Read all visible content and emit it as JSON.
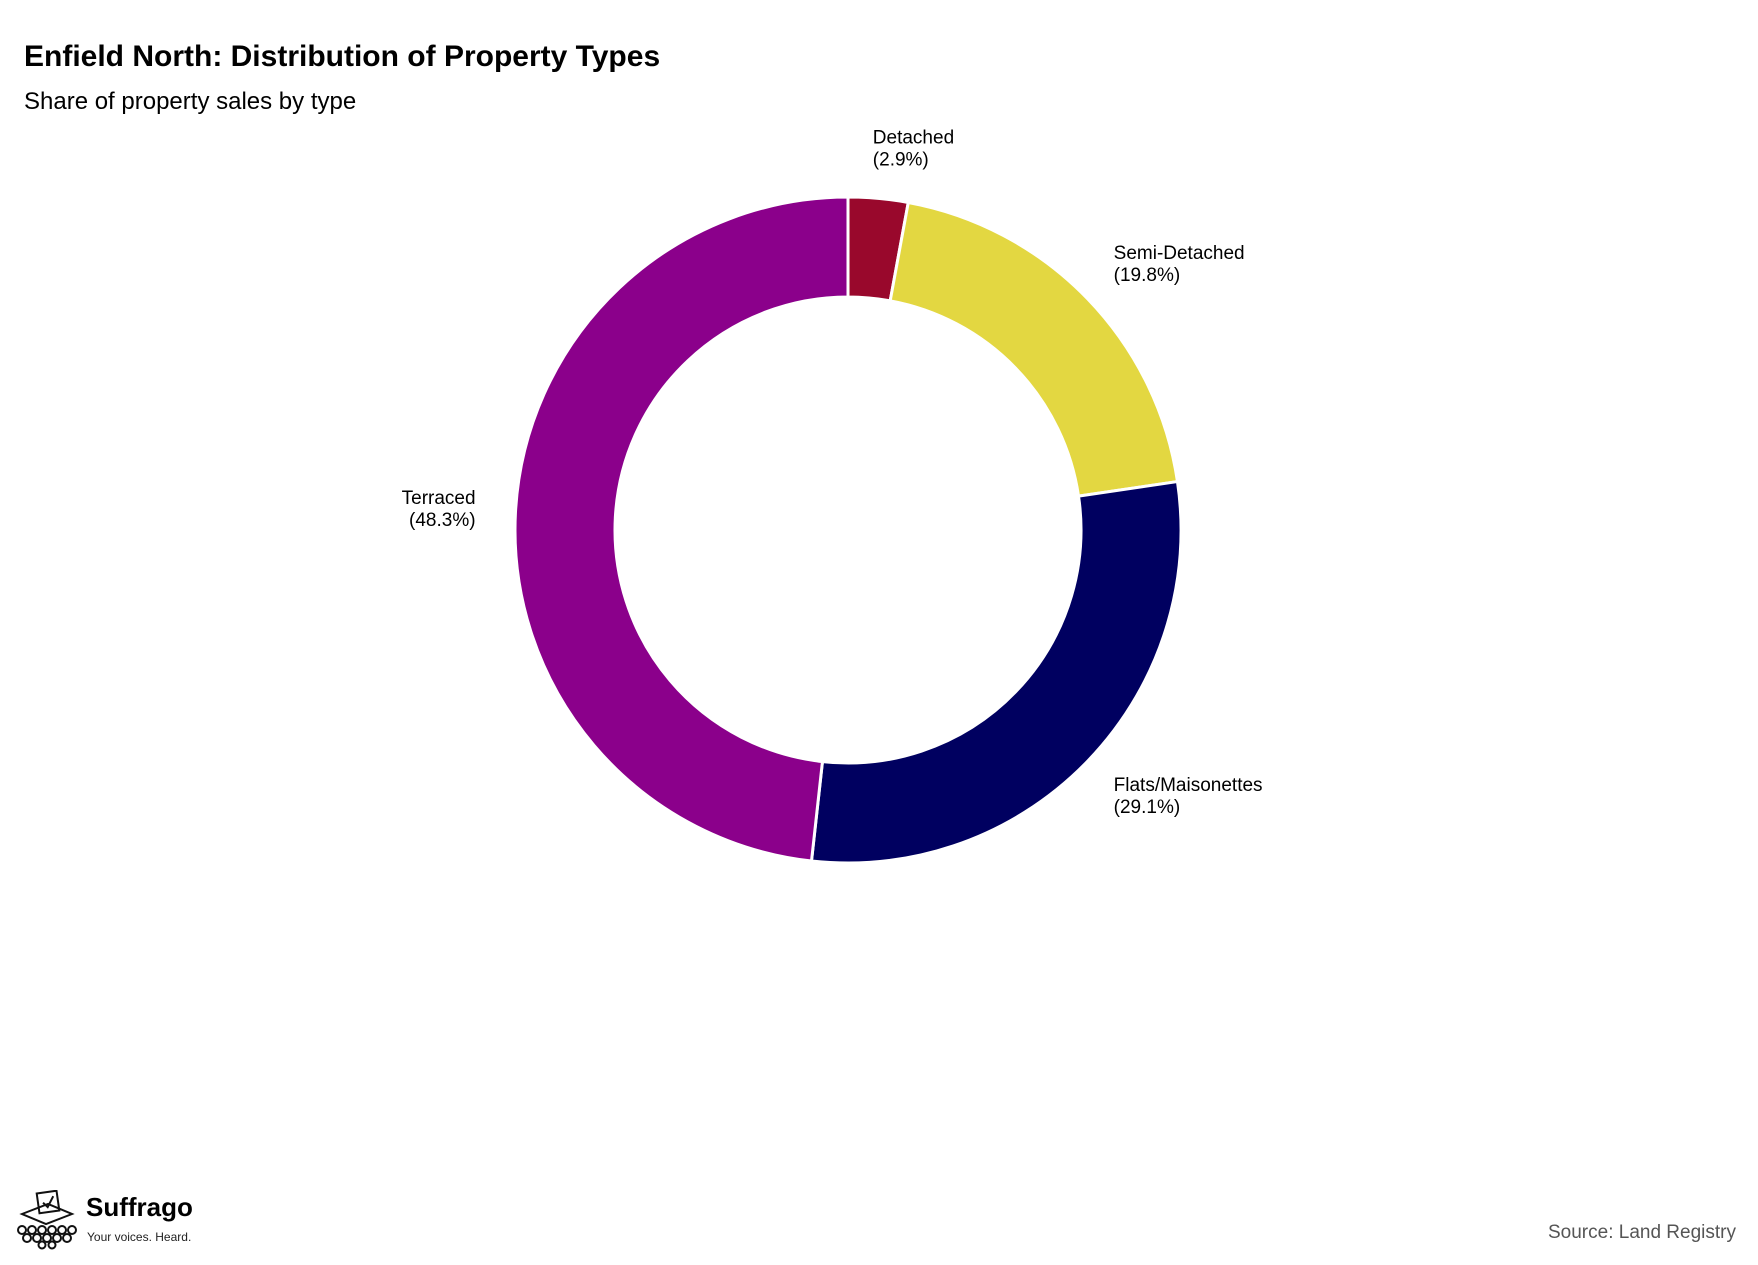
{
  "header": {
    "title": "Enfield North: Distribution of Property Types",
    "subtitle": "Share of property sales by type"
  },
  "chart_data": {
    "type": "pie",
    "style": "donut",
    "title": "Enfield North: Distribution of Property Types",
    "subtitle": "Share of property sales by type",
    "categories": [
      "Detached",
      "Semi-Detached",
      "Flats/Maisonettes",
      "Terraced"
    ],
    "values": [
      2.9,
      19.8,
      29.1,
      48.3
    ],
    "labels": [
      "Detached\n(2.9%)",
      "Semi-Detached\n(19.8%)",
      "Flats/Maisonettes\n(29.1%)",
      "Terraced\n(48.3%)"
    ],
    "colors": [
      "#99082c",
      "#e3d741",
      "#000060",
      "#8b008b"
    ],
    "legend": "none"
  },
  "footer": {
    "brand": "Suffrago",
    "tagline": "Your voices. Heard.",
    "source": "Source: Land Registry",
    "logo_icon": "ballot-box-icon"
  }
}
